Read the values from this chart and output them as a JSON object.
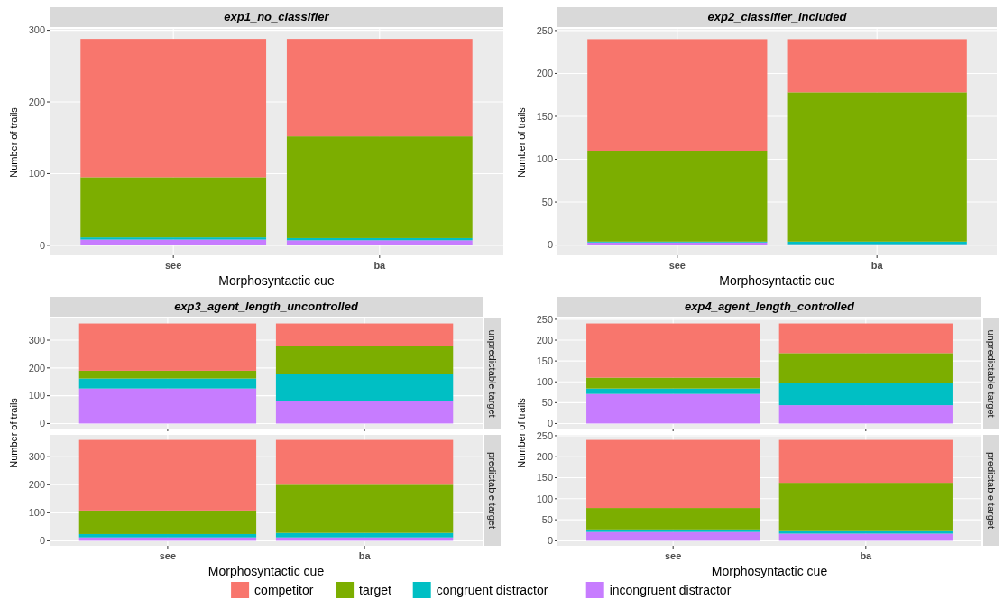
{
  "chart_data": [
    {
      "type": "bar",
      "stacked": true,
      "title": "exp1_no_classifier",
      "xlabel": "Morphosyntactic cue",
      "ylabel": "Number of trails",
      "categories": [
        "see",
        "ba"
      ],
      "ylim": [
        -14,
        302
      ],
      "yticks": [
        0,
        100,
        200,
        300
      ],
      "grid": true,
      "legend": "bottom",
      "series": [
        {
          "name": "incongruent distractor",
          "color": "#c77cff",
          "values": [
            8,
            7
          ]
        },
        {
          "name": "congruent distractor",
          "color": "#00bfc4",
          "values": [
            3,
            3
          ]
        },
        {
          "name": "target",
          "color": "#7cae00",
          "values": [
            84,
            142
          ]
        },
        {
          "name": "competitor",
          "color": "#f8766d",
          "values": [
            193,
            136
          ]
        }
      ]
    },
    {
      "type": "bar",
      "stacked": true,
      "title": "exp2_classifier_included",
      "xlabel": "Morphosyntactic cue",
      "ylabel": "Number of trails",
      "categories": [
        "see",
        "ba"
      ],
      "ylim": [
        -12,
        252
      ],
      "yticks": [
        0,
        50,
        100,
        150,
        200,
        250
      ],
      "grid": true,
      "series": [
        {
          "color": "#c77cff",
          "values": [
            3,
            1
          ]
        },
        {
          "color": "#00bfc4",
          "values": [
            1,
            3
          ]
        },
        {
          "color": "#7cae00",
          "values": [
            106,
            174
          ]
        },
        {
          "color": "#f8766d",
          "values": [
            130,
            62
          ]
        }
      ]
    },
    {
      "type": "bar",
      "stacked": true,
      "title": "exp3_agent_length_uncontrolled",
      "subtitle": "unpredictable target",
      "ylabel": "Number of trails",
      "categories": [
        null,
        null
      ],
      "ylim": [
        -18,
        378
      ],
      "yticks": [
        0,
        100,
        200,
        300
      ],
      "grid": true,
      "series": [
        {
          "color": "#c77cff",
          "values": [
            126,
            80
          ]
        },
        {
          "color": "#00bfc4",
          "values": [
            36,
            98
          ]
        },
        {
          "color": "#7cae00",
          "values": [
            28,
            100
          ]
        },
        {
          "color": "#f8766d",
          "values": [
            170,
            82
          ]
        }
      ]
    },
    {
      "type": "bar",
      "stacked": true,
      "subtitle": "predictable target",
      "xlabel": "Morphosyntactic cue",
      "categories": [
        "see",
        "ba"
      ],
      "ylim": [
        -18,
        378
      ],
      "yticks": [
        0,
        100,
        200,
        300
      ],
      "grid": true,
      "series": [
        {
          "color": "#c77cff",
          "values": [
            12,
            12
          ]
        },
        {
          "color": "#00bfc4",
          "values": [
            12,
            16
          ]
        },
        {
          "color": "#7cae00",
          "values": [
            84,
            172
          ]
        },
        {
          "color": "#f8766d",
          "values": [
            252,
            160
          ]
        }
      ]
    },
    {
      "type": "bar",
      "stacked": true,
      "title": "exp4_agent_length_controlled",
      "subtitle": "unpredictable target",
      "ylabel": "Number of trails",
      "categories": [
        null,
        null
      ],
      "ylim": [
        -12,
        252
      ],
      "yticks": [
        0,
        50,
        100,
        150,
        200,
        250
      ],
      "grid": true,
      "series": [
        {
          "color": "#c77cff",
          "values": [
            71,
            44
          ]
        },
        {
          "color": "#00bfc4",
          "values": [
            13,
            53
          ]
        },
        {
          "color": "#7cae00",
          "values": [
            26,
            72
          ]
        },
        {
          "color": "#f8766d",
          "values": [
            130,
            71
          ]
        }
      ]
    },
    {
      "type": "bar",
      "stacked": true,
      "subtitle": "predictable target",
      "xlabel": "Morphosyntactic cue",
      "categories": [
        "see",
        "ba"
      ],
      "ylim": [
        -12,
        252
      ],
      "yticks": [
        0,
        50,
        100,
        150,
        200,
        250
      ],
      "grid": true,
      "series": [
        {
          "color": "#c77cff",
          "values": [
            21,
            17
          ]
        },
        {
          "color": "#00bfc4",
          "values": [
            6,
            8
          ]
        },
        {
          "color": "#7cae00",
          "values": [
            51,
            113
          ]
        },
        {
          "color": "#f8766d",
          "values": [
            162,
            102
          ]
        }
      ]
    }
  ]
}
